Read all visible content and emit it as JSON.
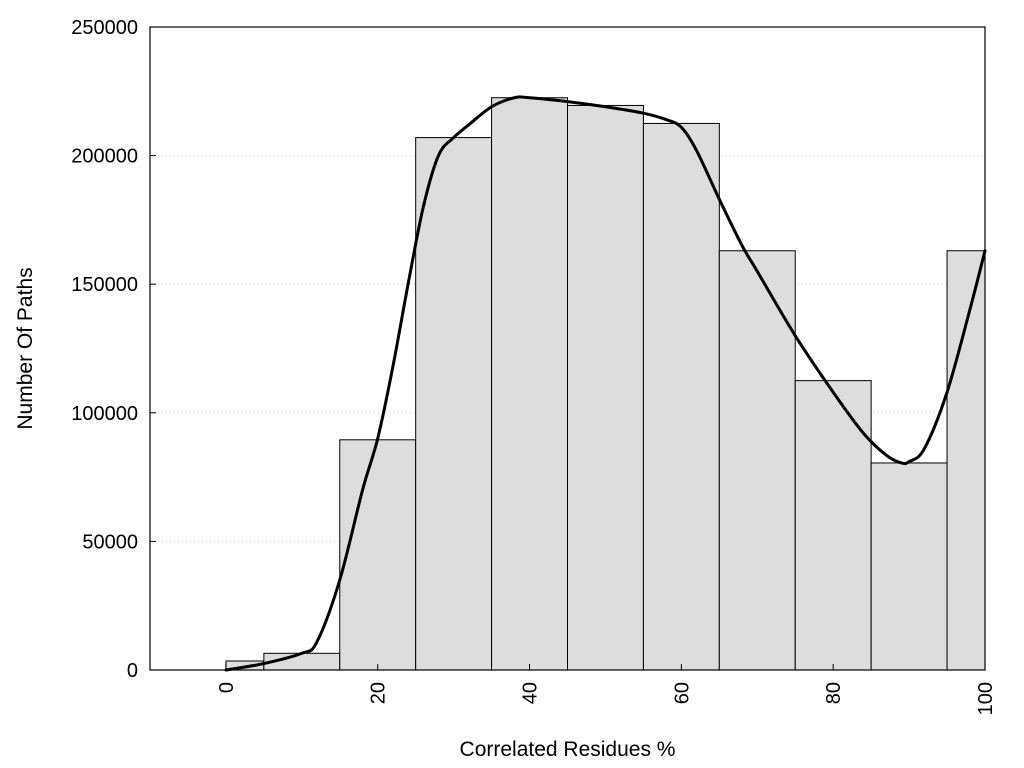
{
  "chart_data": {
    "type": "bar",
    "title": "",
    "xlabel": "Correlated Residues %",
    "ylabel": "Number Of Paths",
    "xlim": [
      -10,
      100
    ],
    "ylim": [
      0,
      250000
    ],
    "x_ticks": [
      0,
      20,
      40,
      60,
      80,
      100
    ],
    "y_ticks": [
      0,
      50000,
      100000,
      150000,
      200000,
      250000
    ],
    "grid": "horizontal dotted",
    "bar_color": "#dddddd",
    "bins": [
      {
        "start": 0,
        "end": 5,
        "value": 3500
      },
      {
        "start": 5,
        "end": 15,
        "value": 6500
      },
      {
        "start": 15,
        "end": 25,
        "value": 89500
      },
      {
        "start": 25,
        "end": 35,
        "value": 207000
      },
      {
        "start": 35,
        "end": 45,
        "value": 222500
      },
      {
        "start": 45,
        "end": 55,
        "value": 219500
      },
      {
        "start": 55,
        "end": 65,
        "value": 212500
      },
      {
        "start": 65,
        "end": 75,
        "value": 163000
      },
      {
        "start": 75,
        "end": 85,
        "value": 112500
      },
      {
        "start": 85,
        "end": 95,
        "value": 80500
      },
      {
        "start": 95,
        "end": 100,
        "value": 163000
      }
    ],
    "curve": {
      "x": [
        0,
        5,
        10,
        12,
        15,
        18,
        20,
        22,
        24,
        26,
        28,
        30,
        32,
        35,
        38,
        40,
        45,
        50,
        55,
        58,
        60,
        62,
        65,
        68,
        70,
        75,
        80,
        84,
        87,
        89,
        90,
        92,
        95,
        98,
        100
      ],
      "y": [
        0,
        2500,
        6500,
        11000,
        35000,
        70000,
        90000,
        118000,
        150000,
        180000,
        200000,
        207000,
        212000,
        219000,
        222500,
        222500,
        221000,
        219000,
        216500,
        214000,
        211000,
        202000,
        183000,
        165000,
        155000,
        130000,
        108000,
        92000,
        83500,
        80500,
        81000,
        86000,
        108000,
        140000,
        163000
      ]
    }
  }
}
